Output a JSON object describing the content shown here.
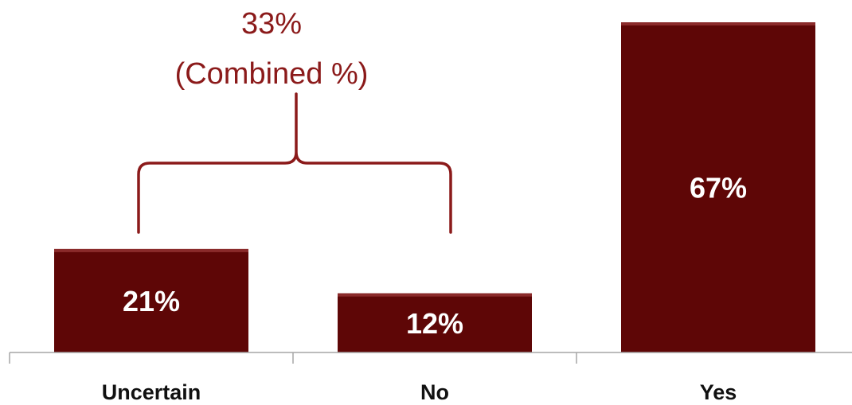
{
  "chart_data": {
    "type": "bar",
    "categories": [
      "Uncertain",
      "No",
      "Yes"
    ],
    "values": [
      21,
      12,
      67
    ],
    "data_labels": [
      "21%",
      "12%",
      "67%"
    ],
    "ylim": [
      0,
      67
    ],
    "grid": false,
    "legend": "none",
    "colors": {
      "bar": "#5e0606",
      "bar_highlight": "#8a2a2a",
      "annotation": "#8b1a1a",
      "axis": "#a6a6a6"
    },
    "annotation": {
      "line1": "33%",
      "line2": "(Combined %)",
      "spans": [
        "Uncertain",
        "No"
      ]
    }
  }
}
